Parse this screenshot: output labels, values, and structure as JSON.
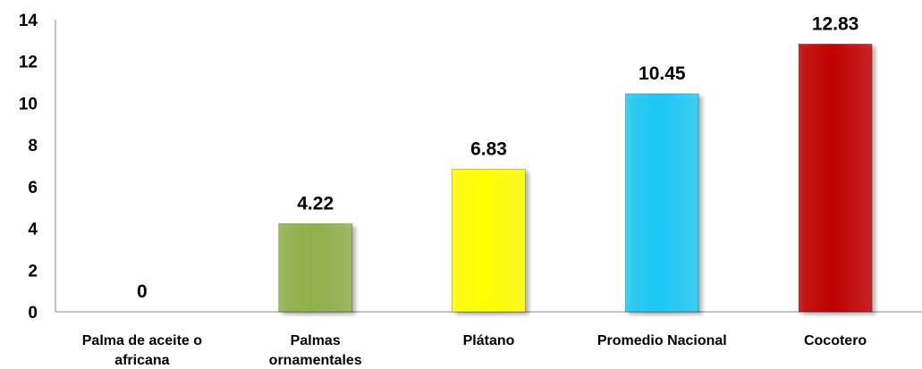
{
  "chart_data": {
    "type": "bar",
    "categories": [
      [
        "Palma de aceite o",
        "africana"
      ],
      [
        "Palmas",
        "ornamentales"
      ],
      [
        "Plátano"
      ],
      [
        "Promedio Nacional"
      ],
      [
        "Cocotero"
      ]
    ],
    "values": [
      0,
      4.22,
      6.83,
      10.45,
      12.83
    ],
    "data_labels": [
      "0",
      "4.22",
      "6.83",
      "10.45",
      "12.83"
    ],
    "colors": [
      "#8fb04a",
      "#8fb04a",
      "#ffff00",
      "#1ec8f5",
      "#c00000"
    ],
    "ylim": [
      0,
      14
    ],
    "yticks": [
      0,
      2,
      4,
      6,
      8,
      10,
      12,
      14
    ],
    "title": "",
    "xlabel": "",
    "ylabel": "",
    "grid": false,
    "legend": "none"
  }
}
